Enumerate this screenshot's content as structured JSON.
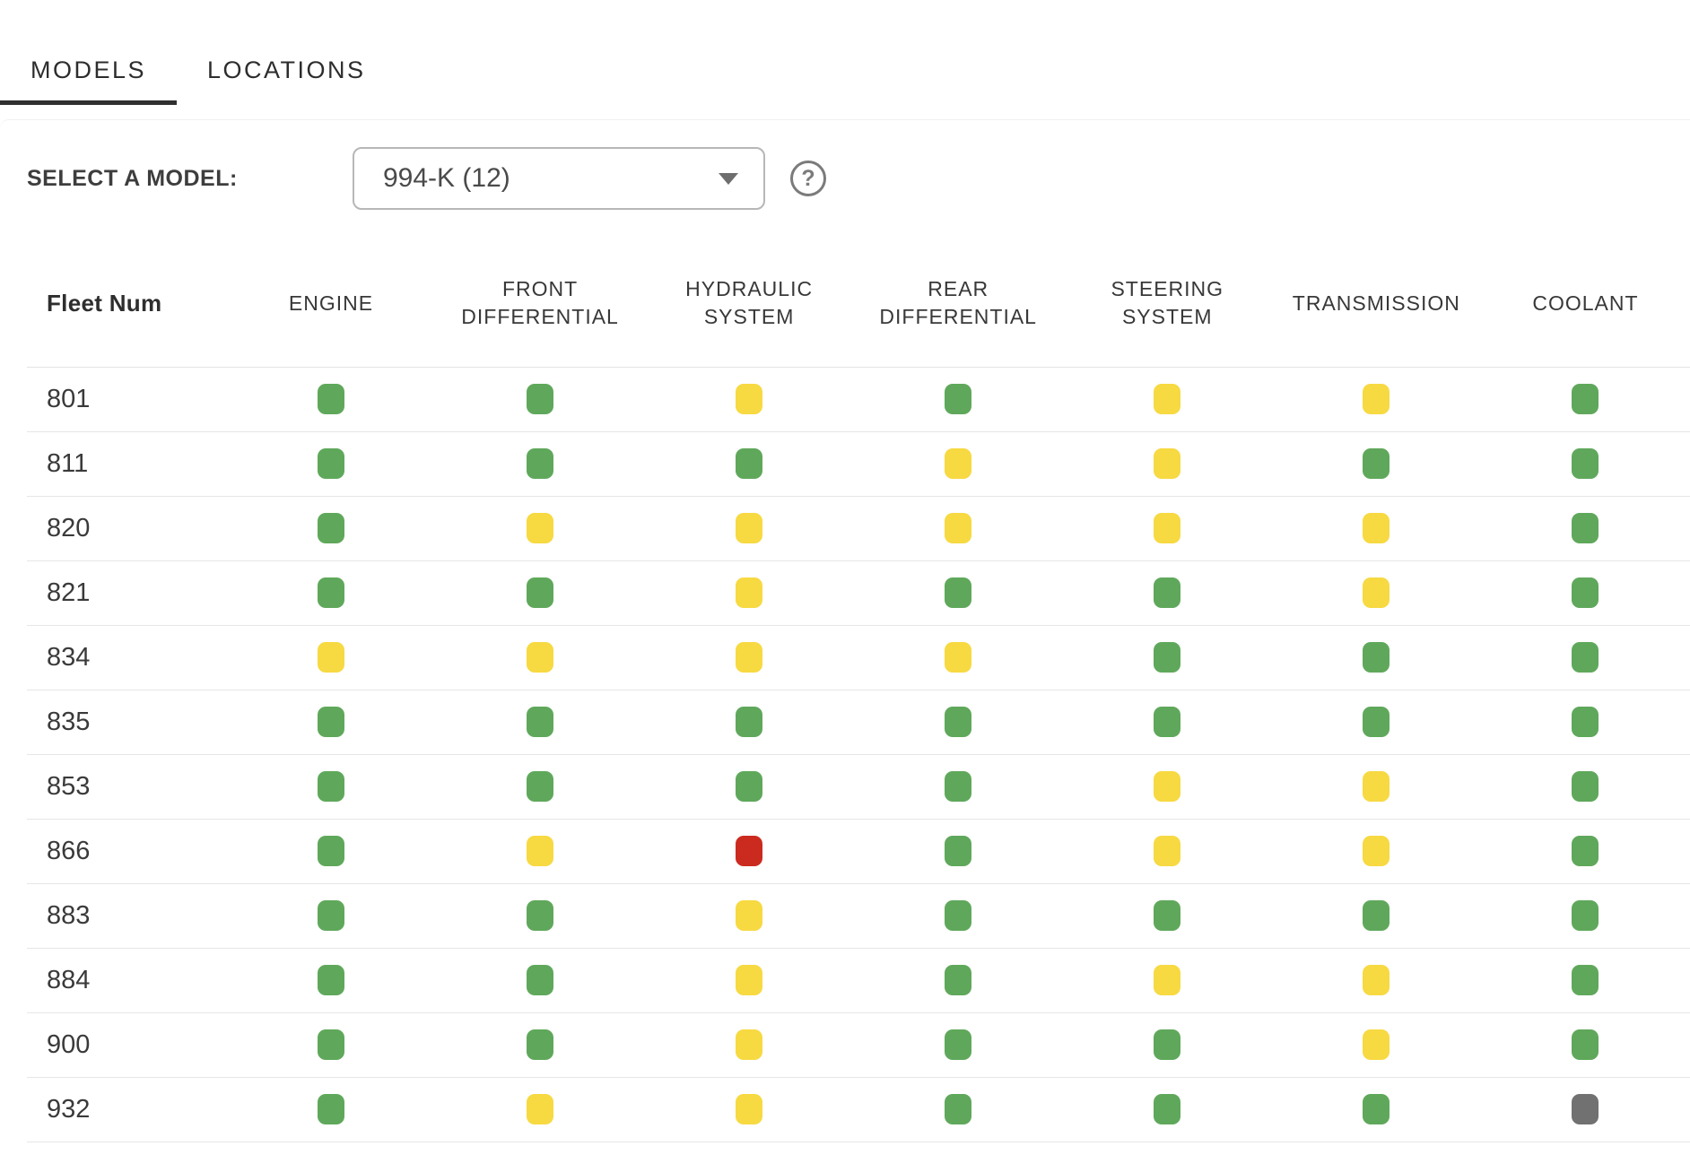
{
  "tabs": [
    {
      "label": "MODELS",
      "active": true
    },
    {
      "label": "LOCATIONS",
      "active": false
    }
  ],
  "selector": {
    "label": "SELECT A MODEL:",
    "value": "994-K (12)",
    "help_glyph": "?"
  },
  "icons": {
    "dropdown_caret": "chevron-down-icon",
    "help": "question-mark-circle-icon"
  },
  "status_colors": {
    "green": "#5FA85B",
    "yellow": "#F7D942",
    "red": "#CB2B1F",
    "gray": "#717171"
  },
  "table": {
    "fleet_column_header": "Fleet Num",
    "columns": [
      "ENGINE",
      "FRONT DIFFERENTIAL",
      "HYDRAULIC SYSTEM",
      "REAR DIFFERENTIAL",
      "STEERING SYSTEM",
      "TRANSMISSION",
      "COOLANT"
    ],
    "rows": [
      {
        "fleet_num": "801",
        "statuses": [
          "green",
          "green",
          "yellow",
          "green",
          "yellow",
          "yellow",
          "green"
        ]
      },
      {
        "fleet_num": "811",
        "statuses": [
          "green",
          "green",
          "green",
          "yellow",
          "yellow",
          "green",
          "green"
        ]
      },
      {
        "fleet_num": "820",
        "statuses": [
          "green",
          "yellow",
          "yellow",
          "yellow",
          "yellow",
          "yellow",
          "green"
        ]
      },
      {
        "fleet_num": "821",
        "statuses": [
          "green",
          "green",
          "yellow",
          "green",
          "green",
          "yellow",
          "green"
        ]
      },
      {
        "fleet_num": "834",
        "statuses": [
          "yellow",
          "yellow",
          "yellow",
          "yellow",
          "green",
          "green",
          "green"
        ]
      },
      {
        "fleet_num": "835",
        "statuses": [
          "green",
          "green",
          "green",
          "green",
          "green",
          "green",
          "green"
        ]
      },
      {
        "fleet_num": "853",
        "statuses": [
          "green",
          "green",
          "green",
          "green",
          "yellow",
          "yellow",
          "green"
        ]
      },
      {
        "fleet_num": "866",
        "statuses": [
          "green",
          "yellow",
          "red",
          "green",
          "yellow",
          "yellow",
          "green"
        ]
      },
      {
        "fleet_num": "883",
        "statuses": [
          "green",
          "green",
          "yellow",
          "green",
          "green",
          "green",
          "green"
        ]
      },
      {
        "fleet_num": "884",
        "statuses": [
          "green",
          "green",
          "yellow",
          "green",
          "yellow",
          "yellow",
          "green"
        ]
      },
      {
        "fleet_num": "900",
        "statuses": [
          "green",
          "green",
          "yellow",
          "green",
          "green",
          "yellow",
          "green"
        ]
      },
      {
        "fleet_num": "932",
        "statuses": [
          "green",
          "yellow",
          "yellow",
          "green",
          "green",
          "green",
          "gray"
        ]
      }
    ]
  }
}
